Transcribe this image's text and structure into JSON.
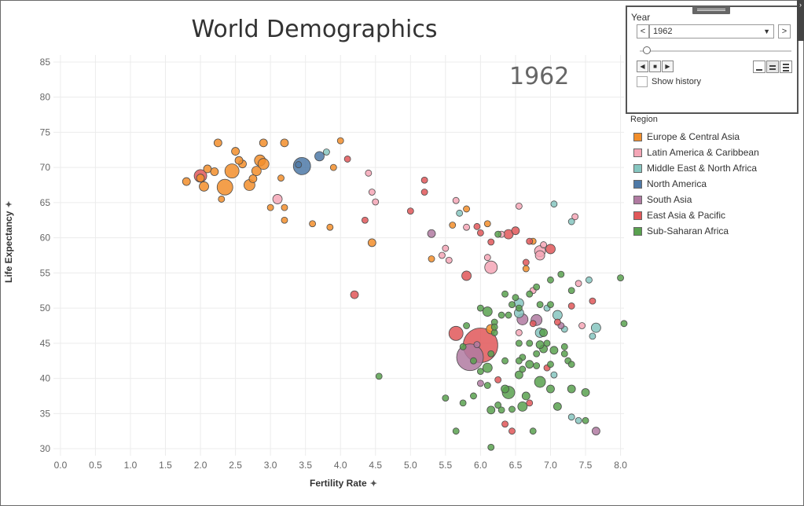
{
  "window": {
    "title": "World Demographics"
  },
  "chart_labels": {
    "year": "1962",
    "ylabel": "Life Expectancy",
    "xlabel": "Fertility Rate"
  },
  "icons": {
    "pin": "pin-icon"
  },
  "year_filter": {
    "title": "Year",
    "selected": "1962",
    "prev_glyph": "<",
    "next_glyph": ">",
    "caret_glyph": "▼",
    "back_glyph": "◀",
    "stop_glyph": "■",
    "play_glyph": "▶",
    "collapse_glyph": "›",
    "show_history_label": "Show history",
    "show_history_checked": false,
    "slider_position": 0.02
  },
  "legend": {
    "title": "Region",
    "items": [
      {
        "label": "Europe & Central Asia",
        "color": "#f28e2b"
      },
      {
        "label": "Latin America & Caribbean",
        "color": "#f4a6b6"
      },
      {
        "label": "Middle East & North Africa",
        "color": "#86c6c0"
      },
      {
        "label": "North America",
        "color": "#4e79a7"
      },
      {
        "label": "South Asia",
        "color": "#b07aa1"
      },
      {
        "label": "East Asia & Pacific",
        "color": "#e15759"
      },
      {
        "label": "Sub-Saharan Africa",
        "color": "#59a14f"
      }
    ]
  },
  "chart_data": {
    "type": "scatter",
    "title": "World Demographics",
    "year": "1962",
    "xlabel": "Fertility Rate",
    "ylabel": "Life Expectancy",
    "xlim": [
      -0.1,
      8.05
    ],
    "ylim": [
      29,
      86
    ],
    "x_ticks": [
      "0.0",
      "0.5",
      "1.0",
      "1.5",
      "2.0",
      "2.5",
      "3.0",
      "3.5",
      "4.0",
      "4.5",
      "5.0",
      "5.5",
      "6.0",
      "6.5",
      "7.0",
      "7.5",
      "8.0"
    ],
    "y_ticks": [
      "30",
      "35",
      "40",
      "45",
      "50",
      "55",
      "60",
      "65",
      "70",
      "75",
      "80",
      "85"
    ],
    "grid": true,
    "legend_position": "right",
    "size_encoding": "population",
    "series": [
      {
        "name": "Europe & Central Asia",
        "color": "#f28e2b",
        "points": [
          [
            2.25,
            73.5,
            5
          ],
          [
            2.9,
            73.5,
            5
          ],
          [
            3.2,
            73.5,
            5
          ],
          [
            4.0,
            73.8,
            4
          ],
          [
            2.5,
            72.3,
            5
          ],
          [
            2.85,
            71.0,
            7
          ],
          [
            2.1,
            69.8,
            5
          ],
          [
            2.45,
            69.5,
            9
          ],
          [
            2.0,
            68.5,
            5
          ],
          [
            1.8,
            68.0,
            5
          ],
          [
            2.05,
            67.3,
            6
          ],
          [
            2.35,
            67.2,
            10
          ],
          [
            2.7,
            67.5,
            7
          ],
          [
            2.8,
            69.5,
            6
          ],
          [
            2.9,
            70.5,
            7
          ],
          [
            2.6,
            70.5,
            5
          ],
          [
            2.55,
            71.0,
            5
          ],
          [
            3.15,
            68.5,
            4
          ],
          [
            2.3,
            65.5,
            4
          ],
          [
            3.0,
            64.3,
            4
          ],
          [
            3.2,
            64.3,
            4
          ],
          [
            3.6,
            62.0,
            4
          ],
          [
            3.2,
            62.5,
            4
          ],
          [
            3.85,
            61.5,
            4
          ],
          [
            4.45,
            59.3,
            5
          ],
          [
            3.9,
            70.0,
            4
          ],
          [
            2.2,
            69.4,
            5
          ],
          [
            5.8,
            64.1,
            4
          ],
          [
            5.6,
            61.8,
            4
          ],
          [
            5.3,
            57.0,
            4
          ],
          [
            6.1,
            62.0,
            4
          ],
          [
            6.65,
            55.6,
            4
          ],
          [
            6.75,
            59.5,
            4
          ],
          [
            6.15,
            47.0,
            6
          ],
          [
            2.75,
            68.4,
            5
          ]
        ]
      },
      {
        "name": "Latin America & Caribbean",
        "color": "#f4a6b6",
        "points": [
          [
            3.1,
            65.5,
            6
          ],
          [
            4.4,
            69.2,
            4
          ],
          [
            4.45,
            66.5,
            4
          ],
          [
            4.5,
            65.1,
            4
          ],
          [
            5.65,
            65.3,
            4
          ],
          [
            5.8,
            61.5,
            4
          ],
          [
            6.15,
            55.8,
            8
          ],
          [
            6.85,
            58.1,
            7
          ],
          [
            6.85,
            57.5,
            6
          ],
          [
            6.55,
            64.5,
            4
          ],
          [
            6.9,
            59.0,
            4
          ],
          [
            7.4,
            53.5,
            4
          ],
          [
            7.35,
            63.0,
            4
          ],
          [
            5.5,
            58.5,
            4
          ],
          [
            5.45,
            57.5,
            4
          ],
          [
            6.75,
            52.5,
            4
          ],
          [
            7.45,
            47.5,
            4
          ],
          [
            6.55,
            46.5,
            4
          ],
          [
            6.3,
            60.5,
            4
          ],
          [
            6.1,
            57.2,
            4
          ],
          [
            5.55,
            56.8,
            4
          ]
        ]
      },
      {
        "name": "Middle East & North Africa",
        "color": "#86c6c0",
        "points": [
          [
            3.8,
            72.2,
            4
          ],
          [
            7.05,
            64.8,
            4
          ],
          [
            7.3,
            62.3,
            4
          ],
          [
            6.55,
            50.7,
            6
          ],
          [
            6.55,
            49.3,
            6
          ],
          [
            7.1,
            49.0,
            6
          ],
          [
            6.85,
            46.5,
            6
          ],
          [
            7.65,
            47.2,
            6
          ],
          [
            7.55,
            54.0,
            4
          ],
          [
            7.6,
            46.0,
            4
          ],
          [
            7.2,
            47.0,
            4
          ],
          [
            5.7,
            63.5,
            4
          ],
          [
            7.3,
            34.5,
            4
          ],
          [
            7.4,
            34.0,
            4
          ],
          [
            6.95,
            50.0,
            4
          ],
          [
            7.05,
            40.5,
            4
          ]
        ]
      },
      {
        "name": "North America",
        "color": "#4e79a7",
        "points": [
          [
            3.45,
            70.2,
            11
          ],
          [
            3.7,
            71.6,
            6
          ],
          [
            3.4,
            70.4,
            4
          ]
        ]
      },
      {
        "name": "South Asia",
        "color": "#b07aa1",
        "points": [
          [
            5.85,
            43.0,
            17
          ],
          [
            5.3,
            60.6,
            5
          ],
          [
            6.6,
            48.4,
            7
          ],
          [
            6.8,
            48.3,
            7
          ],
          [
            7.15,
            47.5,
            4
          ],
          [
            6.0,
            39.3,
            4
          ],
          [
            7.65,
            32.5,
            5
          ],
          [
            5.95,
            44.8,
            4
          ]
        ]
      },
      {
        "name": "East Asia & Pacific",
        "color": "#e15759",
        "points": [
          [
            6.0,
            44.7,
            22
          ],
          [
            5.65,
            46.4,
            9
          ],
          [
            2.0,
            68.8,
            8
          ],
          [
            4.2,
            51.9,
            5
          ],
          [
            6.4,
            60.5,
            6
          ],
          [
            6.5,
            61.0,
            5
          ],
          [
            5.8,
            54.6,
            6
          ],
          [
            7.0,
            58.4,
            6
          ],
          [
            5.2,
            68.2,
            4
          ],
          [
            5.2,
            66.5,
            4
          ],
          [
            4.1,
            71.2,
            4
          ],
          [
            6.75,
            47.8,
            4
          ],
          [
            6.95,
            41.5,
            4
          ],
          [
            7.3,
            50.3,
            4
          ],
          [
            7.1,
            48.0,
            4
          ],
          [
            7.6,
            51.0,
            4
          ],
          [
            6.25,
            39.8,
            4
          ],
          [
            6.7,
            59.5,
            4
          ],
          [
            4.35,
            62.5,
            4
          ],
          [
            5.0,
            63.8,
            4
          ],
          [
            6.0,
            60.7,
            4
          ],
          [
            5.95,
            61.6,
            4
          ],
          [
            6.15,
            59.4,
            4
          ],
          [
            6.65,
            56.5,
            4
          ],
          [
            6.7,
            36.5,
            4
          ],
          [
            6.45,
            32.5,
            4
          ],
          [
            6.35,
            33.5,
            4
          ]
        ]
      },
      {
        "name": "Sub-Saharan Africa",
        "color": "#59a14f",
        "points": [
          [
            6.1,
            49.5,
            6
          ],
          [
            6.0,
            50.0,
            4
          ],
          [
            6.1,
            41.5,
            6
          ],
          [
            6.4,
            38.0,
            8
          ],
          [
            6.85,
            39.5,
            7
          ],
          [
            7.0,
            38.5,
            5
          ],
          [
            6.35,
            38.5,
            5
          ],
          [
            6.65,
            37.5,
            5
          ],
          [
            6.6,
            36.0,
            6
          ],
          [
            6.15,
            35.5,
            5
          ],
          [
            6.25,
            36.2,
            4
          ],
          [
            6.3,
            35.5,
            4
          ],
          [
            7.1,
            36.0,
            5
          ],
          [
            7.05,
            44.0,
            5
          ],
          [
            6.9,
            44.2,
            5
          ],
          [
            6.85,
            44.8,
            5
          ],
          [
            6.9,
            46.5,
            5
          ],
          [
            7.2,
            44.5,
            4
          ],
          [
            7.25,
            42.5,
            4
          ],
          [
            6.8,
            43.5,
            4
          ],
          [
            6.7,
            42.0,
            5
          ],
          [
            6.55,
            40.5,
            5
          ],
          [
            6.6,
            41.3,
            4
          ],
          [
            6.8,
            41.8,
            4
          ],
          [
            7.0,
            42.0,
            4
          ],
          [
            7.3,
            38.5,
            5
          ],
          [
            7.5,
            38.0,
            5
          ],
          [
            6.45,
            35.6,
            4
          ],
          [
            5.9,
            37.5,
            4
          ],
          [
            5.75,
            36.5,
            4
          ],
          [
            5.75,
            44.5,
            4
          ],
          [
            5.8,
            47.5,
            4
          ],
          [
            6.2,
            48.0,
            4
          ],
          [
            6.3,
            49.0,
            4
          ],
          [
            6.35,
            52.0,
            4
          ],
          [
            6.5,
            51.5,
            4
          ],
          [
            6.7,
            52.0,
            4
          ],
          [
            6.8,
            53.0,
            4
          ],
          [
            7.0,
            54.0,
            4
          ],
          [
            7.15,
            54.8,
            4
          ],
          [
            7.3,
            52.5,
            4
          ],
          [
            6.55,
            50.0,
            4
          ],
          [
            6.85,
            50.5,
            4
          ],
          [
            7.0,
            50.5,
            4
          ],
          [
            6.2,
            46.5,
            4
          ],
          [
            6.55,
            45.0,
            4
          ],
          [
            6.7,
            45.0,
            4
          ],
          [
            6.95,
            45.0,
            4
          ],
          [
            7.2,
            43.5,
            4
          ],
          [
            7.3,
            42.0,
            4
          ],
          [
            6.0,
            41.0,
            4
          ],
          [
            5.9,
            42.5,
            4
          ],
          [
            6.15,
            43.5,
            4
          ],
          [
            6.6,
            43.0,
            4
          ],
          [
            6.35,
            42.5,
            4
          ],
          [
            7.5,
            34.0,
            4
          ],
          [
            5.5,
            37.2,
            4
          ],
          [
            5.65,
            32.5,
            4
          ],
          [
            6.15,
            30.2,
            4
          ],
          [
            6.75,
            32.5,
            4
          ],
          [
            4.55,
            40.3,
            4
          ],
          [
            6.25,
            60.5,
            4
          ],
          [
            8.0,
            54.3,
            4
          ],
          [
            8.05,
            47.8,
            4
          ],
          [
            6.4,
            49.0,
            4
          ],
          [
            6.1,
            39.0,
            4
          ],
          [
            6.2,
            47.3,
            4
          ],
          [
            6.45,
            50.5,
            4
          ],
          [
            6.55,
            42.5,
            4
          ]
        ]
      }
    ]
  }
}
